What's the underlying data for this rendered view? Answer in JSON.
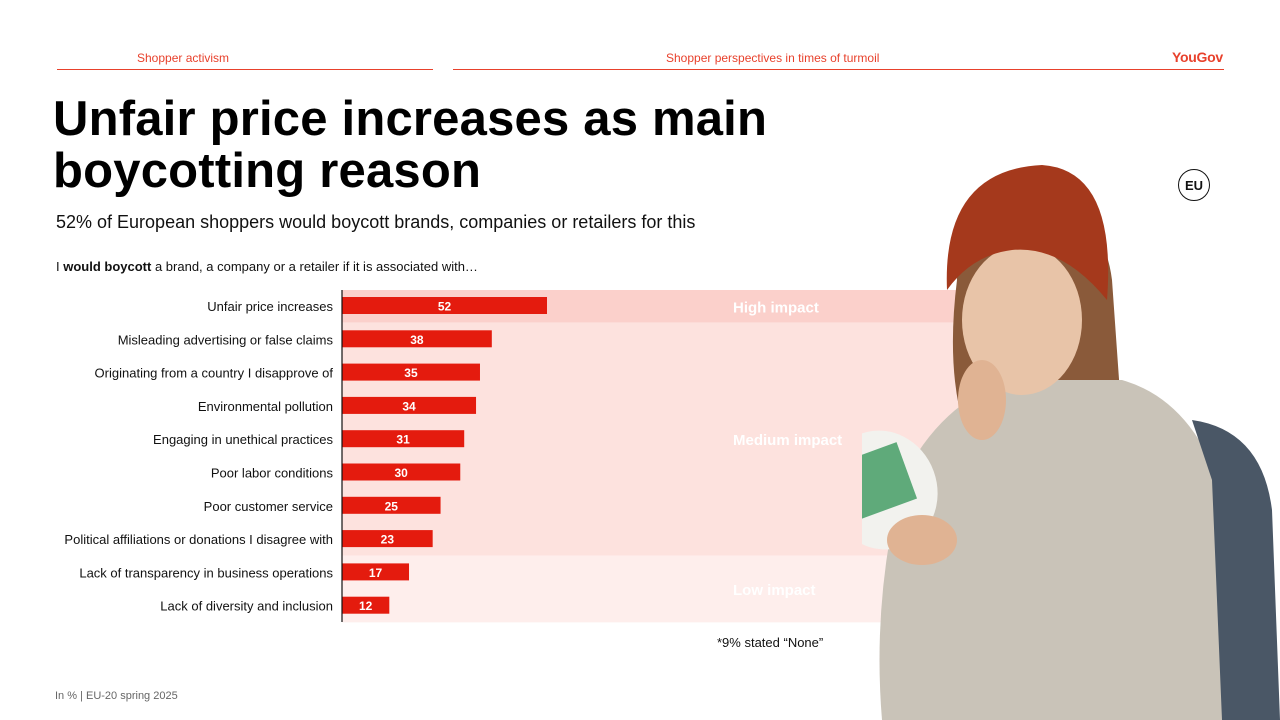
{
  "header": {
    "section": "Shopper activism",
    "report": "Shopper perspectives in times of turmoil",
    "logo": "YouGov"
  },
  "title": "Unfair price increases as main boycotting reason",
  "subtitle": "52% of European shoppers would boycott brands, companies or retailers for this",
  "question": {
    "prefix": "I ",
    "bold": "would boycott",
    "suffix": " a brand, a company or a retailer if it is associated with…"
  },
  "region_badge": "EU",
  "footnote": "*9% stated “None”",
  "source": "In % | EU-20 spring 2025",
  "colors": {
    "accent": "#e8412c",
    "bar": "#e41b0e",
    "band_high": "#fbd0cb",
    "band_medium": "#fde2de",
    "band_low": "#feeeec"
  },
  "chart_data": {
    "type": "bar",
    "orientation": "horizontal",
    "categories": [
      "Unfair price increases",
      "Misleading advertising or false claims",
      "Originating from a country I disapprove of",
      "Environmental pollution",
      "Engaging in unethical practices",
      "Poor labor conditions",
      "Poor customer service",
      "Political affiliations or donations I disagree with",
      "Lack of transparency in business operations",
      "Lack of diversity and inclusion"
    ],
    "values": [
      52,
      38,
      35,
      34,
      31,
      30,
      25,
      23,
      17,
      12
    ],
    "xlim": [
      0,
      100
    ],
    "data_labels": true,
    "bands": [
      {
        "label": "High impact",
        "start": 0,
        "end": 0,
        "color": "#fbd0cb"
      },
      {
        "label": "Medium impact",
        "start": 1,
        "end": 7,
        "color": "#fde2de"
      },
      {
        "label": "Low impact",
        "start": 8,
        "end": 9,
        "color": "#feeeec"
      }
    ]
  }
}
